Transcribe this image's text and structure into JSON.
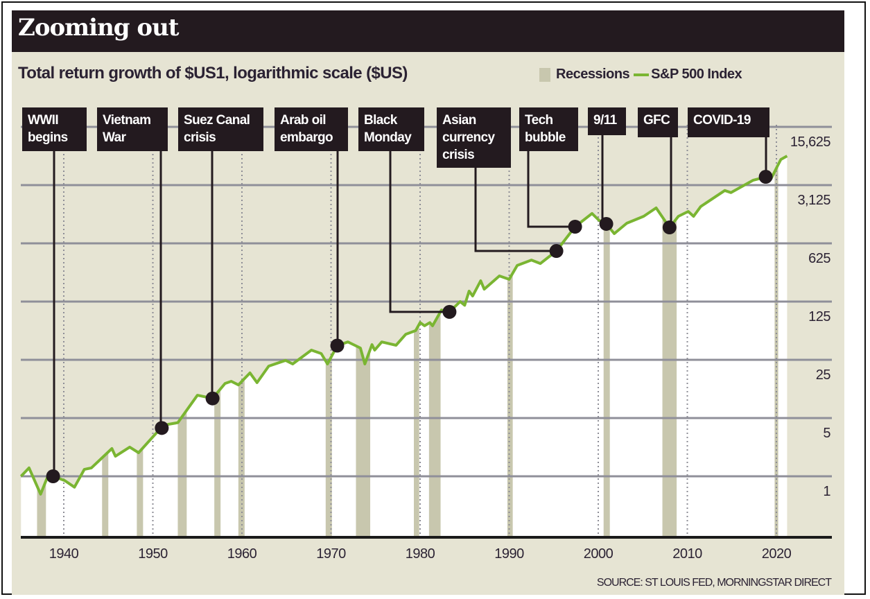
{
  "header": {
    "title": "Zooming out",
    "subtitle": "Total return growth of $US1, logarithmic scale ($US)",
    "source": "SOURCE: ST LOUIS FED, MORNINGSTAR DIRECT"
  },
  "legend": {
    "recessions": "Recessions",
    "index": "S&P 500 Index"
  },
  "colors": {
    "background": "#e6e4d3",
    "header": "#231a1f",
    "line": "#7ab532",
    "recession": "#c8c7ae",
    "area": "#ffffff",
    "annotation": "#231a1f"
  },
  "chart_data": {
    "type": "line",
    "title": "Zooming out",
    "subtitle": "Total return growth of $US1, logarithmic scale ($US)",
    "yscale": "log (base 5)",
    "ylim": [
      0.35,
      15625
    ],
    "xlim": [
      1935,
      2026
    ],
    "grid": "horizontal solid at y ticks, dotted vertical at decades",
    "legend_placement": "top-right",
    "x_ticks": [
      "1940",
      "1950",
      "1960",
      "1970",
      "1980",
      "1990",
      "2000",
      "2010",
      "2020"
    ],
    "y_ticks": [
      {
        "value": 1,
        "label": "1"
      },
      {
        "value": 5,
        "label": "5"
      },
      {
        "value": 25,
        "label": "25"
      },
      {
        "value": 125,
        "label": "125"
      },
      {
        "value": 625,
        "label": "625"
      },
      {
        "value": 3125,
        "label": "3,125"
      },
      {
        "value": 15625,
        "label": "15,625"
      }
    ],
    "series": [
      {
        "name": "S&P 500 Index",
        "x": [
          1935.2,
          1936.1,
          1937.4,
          1938.2,
          1938.8,
          1940.1,
          1941.2,
          1942.3,
          1943.1,
          1945.4,
          1945.8,
          1947.4,
          1948.4,
          1950.9,
          1951.7,
          1952.8,
          1955.0,
          1956.7,
          1958.1,
          1958.8,
          1959.6,
          1960.9,
          1961.7,
          1963.0,
          1964.9,
          1965.7,
          1967.8,
          1968.9,
          1969.6,
          1970.7,
          1971.9,
          1973.3,
          1973.8,
          1974.6,
          1974.9,
          1975.7,
          1977.3,
          1978.4,
          1979.5,
          1980.0,
          1980.5,
          1981.1,
          1981.4,
          1982.4,
          1983.3,
          1984.5,
          1985.0,
          1985.5,
          1985.9,
          1986.8,
          1987.2,
          1988.9,
          1990.0,
          1990.9,
          1992.5,
          1993.5,
          1995.3,
          1997.4,
          1999.3,
          2000.1,
          2000.9,
          2001.8,
          2003.2,
          2005.1,
          2006.5,
          2008.0,
          2009.0,
          2010.1,
          2010.7,
          2011.5,
          2014.2,
          2014.9,
          2017.4,
          2018.3,
          2018.8,
          2019.4,
          2020.1,
          2020.5,
          2021.2
        ],
        "y": [
          1.0,
          1.26,
          0.61,
          1.0,
          1.0,
          0.89,
          0.74,
          1.21,
          1.26,
          2.15,
          1.74,
          2.24,
          1.92,
          3.8,
          4.2,
          4.4,
          9.4,
          8.6,
          13,
          13.8,
          12.5,
          17.4,
          13.3,
          21,
          24.6,
          22.3,
          32.7,
          29.7,
          22.3,
          37,
          41,
          34.6,
          22.3,
          38,
          32.7,
          41,
          37.4,
          50.7,
          56,
          70,
          64,
          70,
          64,
          99,
          94,
          125,
          113,
          167,
          146,
          222,
          176,
          254,
          231,
          339,
          394,
          358,
          506,
          990,
          1426,
          1176,
          1070,
          818,
          1090,
          1320,
          1664,
          970,
          1320,
          1510,
          1320,
          1730,
          2690,
          2540,
          3580,
          3790,
          4590,
          3720,
          5250,
          6350,
          6990
        ]
      }
    ],
    "recessions": [
      [
        1937.0,
        1938.0
      ],
      [
        1944.3,
        1945.0
      ],
      [
        1948.2,
        1948.9
      ],
      [
        1952.8,
        1953.8
      ],
      [
        1956.9,
        1957.6
      ],
      [
        1959.6,
        1960.3
      ],
      [
        1969.4,
        1970.1
      ],
      [
        1972.8,
        1974.4
      ],
      [
        1979.3,
        1979.9
      ],
      [
        1981.0,
        1982.3
      ],
      [
        1989.8,
        1990.4
      ],
      [
        2000.6,
        2001.3
      ],
      [
        2007.2,
        2008.8
      ],
      [
        2019.8,
        2020.2
      ]
    ],
    "annotations": [
      {
        "lines": [
          "WWII",
          "begins"
        ],
        "x": 1938.8,
        "y": 1.0
      },
      {
        "lines": [
          "Vietnam",
          "War"
        ],
        "x": 1951.0,
        "y": 3.8
      },
      {
        "lines": [
          "Suez Canal",
          "crisis"
        ],
        "x": 1956.7,
        "y": 8.6
      },
      {
        "lines": [
          "Arab oil",
          "embargo"
        ],
        "x": 1970.7,
        "y": 37
      },
      {
        "lines": [
          "Black",
          "Monday"
        ],
        "x": 1983.3,
        "y": 94
      },
      {
        "lines": [
          "Asian",
          "currency",
          "crisis"
        ],
        "x": 1995.3,
        "y": 506
      },
      {
        "lines": [
          "Tech",
          "bubble"
        ],
        "x": 1997.4,
        "y": 990
      },
      {
        "lines": [
          "9/11"
        ],
        "x": 2000.9,
        "y": 1070
      },
      {
        "lines": [
          "GFC"
        ],
        "x": 2008.0,
        "y": 970
      },
      {
        "lines": [
          "COVID-19"
        ],
        "x": 2018.8,
        "y": 3930
      }
    ]
  }
}
